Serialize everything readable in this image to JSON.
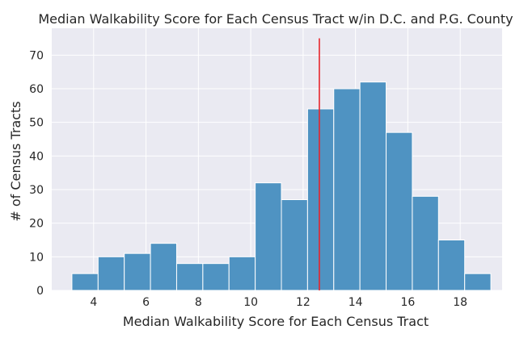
{
  "chart_data": {
    "type": "bar",
    "title": "Median Walkability Score for Each Census Tract w/in D.C. and P.G. County",
    "xlabel": "Median Walkability Score for Each Census Tract",
    "ylabel": "# of Census Tracts",
    "xlim": [
      2.4,
      19.6
    ],
    "ylim": [
      0,
      78
    ],
    "x_ticks": [
      4,
      6,
      8,
      10,
      12,
      14,
      16,
      18
    ],
    "y_ticks": [
      0,
      10,
      20,
      30,
      40,
      50,
      60,
      70
    ],
    "grid": true,
    "bins": [
      {
        "start": 3.17,
        "end": 4.17,
        "count": 5
      },
      {
        "start": 4.17,
        "end": 5.17,
        "count": 10
      },
      {
        "start": 5.17,
        "end": 6.17,
        "count": 11
      },
      {
        "start": 6.17,
        "end": 7.17,
        "count": 14
      },
      {
        "start": 7.17,
        "end": 8.17,
        "count": 8
      },
      {
        "start": 8.17,
        "end": 9.17,
        "count": 8
      },
      {
        "start": 9.17,
        "end": 10.17,
        "count": 10
      },
      {
        "start": 10.17,
        "end": 11.17,
        "count": 32
      },
      {
        "start": 11.17,
        "end": 12.17,
        "count": 27
      },
      {
        "start": 12.17,
        "end": 13.17,
        "count": 54
      },
      {
        "start": 13.17,
        "end": 14.17,
        "count": 60
      },
      {
        "start": 14.17,
        "end": 15.17,
        "count": 62
      },
      {
        "start": 15.17,
        "end": 16.17,
        "count": 47
      },
      {
        "start": 16.17,
        "end": 17.17,
        "count": 28
      },
      {
        "start": 17.17,
        "end": 18.17,
        "count": 15
      },
      {
        "start": 18.17,
        "end": 19.17,
        "count": 5
      }
    ],
    "reference_line": {
      "x": 12.62,
      "y_top": 75,
      "color": "#e8242b"
    },
    "colors": {
      "background": "#eaeaf2",
      "bar": "#4f93c2",
      "bar_edge": "#ffffff",
      "grid": "#ffffff"
    }
  }
}
